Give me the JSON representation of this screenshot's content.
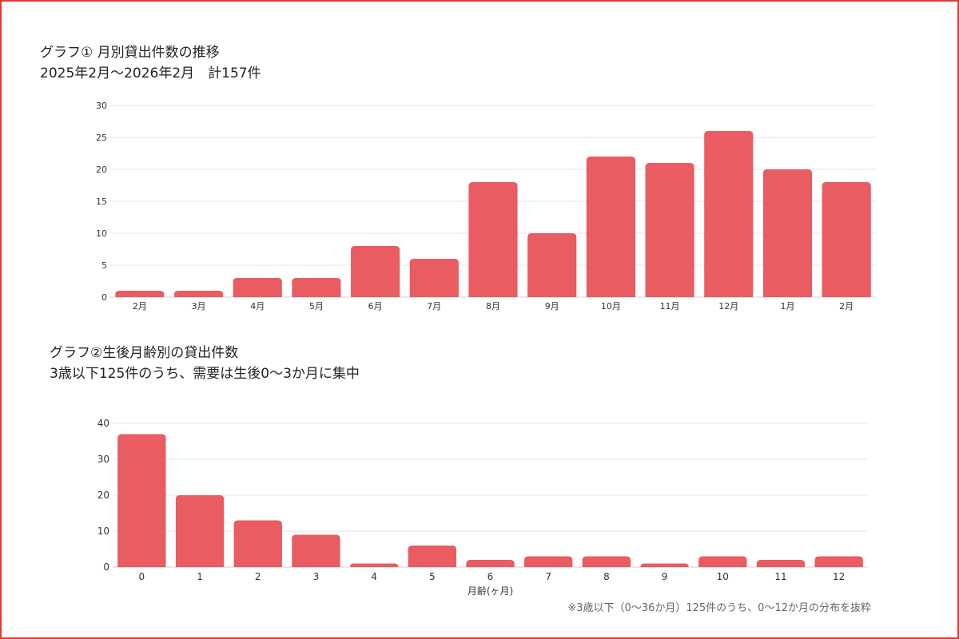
{
  "colors": {
    "bar": "#e85c62",
    "border": "#e53935",
    "grid": "#e6e6e6"
  },
  "chart1": {
    "title_line1": "グラフ① 月別貸出件数の推移",
    "title_line2": "2025年2月〜2026年2月　計157件"
  },
  "chart2": {
    "title_line1": "グラフ②生後月齢別の貸出件数",
    "title_line2": "3歳以下125件のうち、需要は生後0〜3か月に集中"
  },
  "footnote": "※3歳以下（0〜36か月）125件のうち、0〜12か月の分布を抜粋",
  "chart_data": [
    {
      "type": "bar",
      "title": "グラフ① 月別貸出件数の推移",
      "subtitle": "2025年2月〜2026年2月　計157件",
      "categories": [
        "2月",
        "3月",
        "4月",
        "5月",
        "6月",
        "7月",
        "8月",
        "9月",
        "10月",
        "11月",
        "12月",
        "1月",
        "2月"
      ],
      "values": [
        1,
        1,
        3,
        3,
        8,
        6,
        18,
        10,
        22,
        21,
        26,
        20,
        18
      ],
      "xlabel": "",
      "ylabel": "",
      "ylim": [
        0,
        30
      ],
      "yticks": [
        0,
        5,
        10,
        15,
        20,
        25,
        30
      ],
      "grid": true,
      "legend": "none"
    },
    {
      "type": "bar",
      "title": "グラフ②生後月齢別の貸出件数",
      "subtitle": "3歳以下125件のうち、需要は生後0〜3か月に集中",
      "categories": [
        "0",
        "1",
        "2",
        "3",
        "4",
        "5",
        "6",
        "7",
        "8",
        "9",
        "10",
        "11",
        "12"
      ],
      "values": [
        37,
        20,
        13,
        9,
        1,
        6,
        2,
        3,
        3,
        1,
        3,
        2,
        3
      ],
      "xlabel": "月齢(ヶ月)",
      "ylabel": "",
      "ylim": [
        0,
        40
      ],
      "yticks": [
        0,
        10,
        20,
        30,
        40
      ],
      "grid": true,
      "legend": "none"
    }
  ]
}
